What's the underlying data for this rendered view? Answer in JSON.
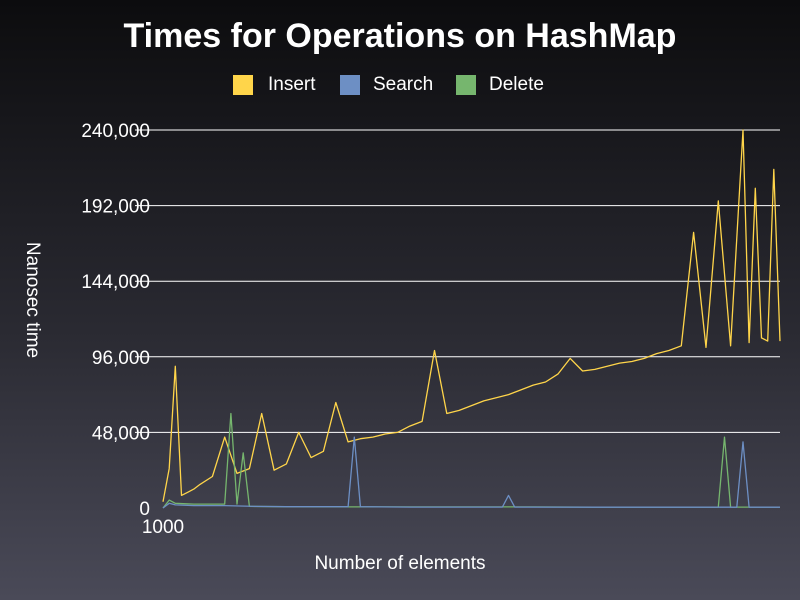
{
  "chart_data": {
    "type": "line",
    "title": "Times for Operations on HashMap",
    "xlabel": "Number of elements",
    "ylabel": "Nanosec time",
    "x_tick_labels": [
      "1000"
    ],
    "y_tick_labels": [
      "0",
      "48,000",
      "96,000",
      "144,000",
      "192,000",
      "240,000"
    ],
    "y_ticks": [
      0,
      48000,
      96000,
      144000,
      192000,
      240000
    ],
    "ylim": [
      0,
      240000
    ],
    "x_index_range": [
      0,
      100
    ],
    "grid": "horizontal",
    "legend_position": "top",
    "series": [
      {
        "name": "Insert",
        "color": "#ffd54a",
        "x": [
          0,
          1,
          2,
          3,
          4,
          5,
          6,
          8,
          10,
          12,
          14,
          16,
          18,
          20,
          22,
          24,
          26,
          28,
          30,
          32,
          34,
          36,
          38,
          40,
          42,
          44,
          46,
          48,
          50,
          52,
          54,
          56,
          58,
          60,
          62,
          64,
          66,
          68,
          70,
          72,
          74,
          76,
          78,
          80,
          82,
          84,
          86,
          88,
          90,
          92,
          94,
          95,
          96,
          97,
          98,
          99,
          100
        ],
        "values": [
          4000,
          25000,
          90000,
          8000,
          10000,
          12000,
          15000,
          20000,
          45000,
          22000,
          25000,
          60000,
          24000,
          28000,
          48000,
          32000,
          36000,
          67000,
          42000,
          44000,
          45000,
          47000,
          48000,
          52000,
          55000,
          100000,
          60000,
          62000,
          65000,
          68000,
          70000,
          72000,
          75000,
          78000,
          80000,
          85000,
          95000,
          87000,
          88000,
          90000,
          92000,
          93000,
          95000,
          98000,
          100000,
          103000,
          175000,
          102000,
          195000,
          103000,
          240000,
          105000,
          203000,
          108000,
          106000,
          215000,
          106000
        ]
      },
      {
        "name": "Search",
        "color": "#6d8fc4",
        "x": [
          0,
          1,
          2,
          5,
          10,
          15,
          20,
          30,
          31,
          32,
          40,
          50,
          55,
          56,
          57,
          70,
          80,
          90,
          93,
          94,
          95,
          100
        ],
        "values": [
          0,
          3000,
          2000,
          1500,
          1500,
          1000,
          800,
          800,
          45000,
          800,
          600,
          600,
          600,
          8000,
          600,
          500,
          500,
          500,
          500,
          42000,
          500,
          500
        ]
      },
      {
        "name": "Delete",
        "color": "#76b66e",
        "x": [
          0,
          1,
          2,
          5,
          10,
          11,
          12,
          13,
          14,
          20,
          30,
          40,
          50,
          60,
          70,
          80,
          90,
          91,
          92,
          93,
          100
        ],
        "values": [
          0,
          5000,
          3000,
          2500,
          2500,
          60000,
          2500,
          35000,
          1000,
          800,
          700,
          700,
          700,
          700,
          600,
          600,
          600,
          45000,
          600,
          600,
          600
        ]
      }
    ]
  }
}
